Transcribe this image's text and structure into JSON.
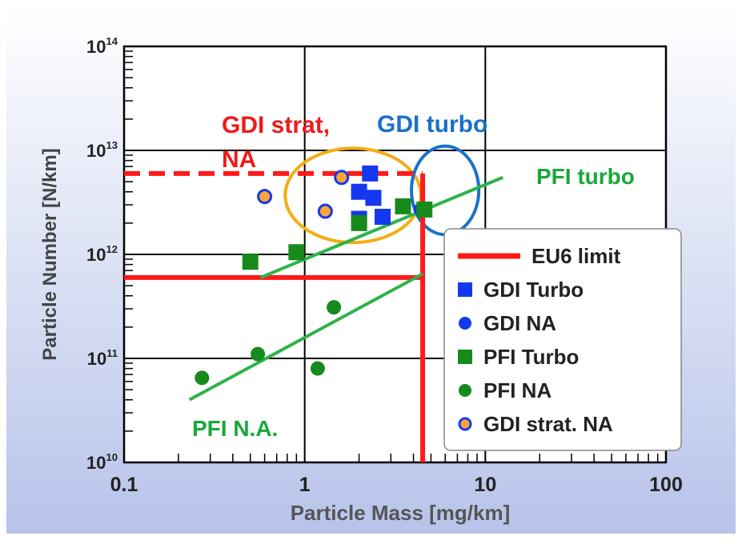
{
  "colors": {
    "background_top": "#ffffff",
    "background_bottom": "#b7c3ea",
    "limit_red": "#ff1a1a",
    "gdi_blue": "#1438f0",
    "pfi_green": "#178a1c",
    "trend_green": "#2fb24a",
    "strat_fill": "#ffa533",
    "gold_ellipse": "#f4ae12",
    "turbo_circle": "#1a72c6",
    "label_red": "#f01a1a",
    "label_blue": "#1a70c8",
    "label_green": "#18a839"
  },
  "chart_data": {
    "type": "scatter",
    "xlabel": "Particle Mass [mg/km]",
    "ylabel": "Particle Number [N/km]",
    "x_scale": "log",
    "y_scale": "log",
    "xlim": [
      0.1,
      100
    ],
    "ylim": [
      10000000000.0,
      100000000000000.0
    ],
    "x_ticks": [
      {
        "value": 0.1,
        "label": "0.1"
      },
      {
        "value": 1,
        "label": "1"
      },
      {
        "value": 10,
        "label": "10"
      },
      {
        "value": 100,
        "label": "100"
      }
    ],
    "y_ticks": [
      {
        "value": 10000000000.0,
        "base": "10",
        "exp": "10"
      },
      {
        "value": 100000000000.0,
        "base": "10",
        "exp": "11"
      },
      {
        "value": 1000000000000.0,
        "base": "10",
        "exp": "12"
      },
      {
        "value": 10000000000000.0,
        "base": "10",
        "exp": "13"
      },
      {
        "value": 100000000000000.0,
        "base": "10",
        "exp": "14"
      }
    ],
    "grid": true,
    "legend_position": "right",
    "legend": [
      {
        "key": "eu6",
        "label": "EU6 limit",
        "marker": "line",
        "color": "#ff1a1a"
      },
      {
        "key": "gdi_turbo",
        "label": "GDI Turbo",
        "marker": "square",
        "color": "#1438f0"
      },
      {
        "key": "gdi_na",
        "label": "GDI NA",
        "marker": "circle",
        "color": "#1438f0"
      },
      {
        "key": "pfi_turbo",
        "label": "PFI Turbo",
        "marker": "square",
        "color": "#178a1c"
      },
      {
        "key": "pfi_na",
        "label": "PFI NA",
        "marker": "circle",
        "color": "#178a1c"
      },
      {
        "key": "gdi_strat_na",
        "label": "GDI strat. NA",
        "marker": "ring",
        "color": "#1438f0",
        "fill": "#ffa533"
      }
    ],
    "series": [
      {
        "key": "gdi_turbo",
        "marker": "square",
        "color": "#1438f0",
        "points": [
          [
            2.3,
            6000000000000.0
          ],
          [
            2.0,
            4000000000000.0
          ],
          [
            2.4,
            3500000000000.0
          ],
          [
            2.0,
            2200000000000.0
          ],
          [
            2.7,
            2300000000000.0
          ]
        ]
      },
      {
        "key": "gdi_na",
        "marker": "circle",
        "color": "#1438f0",
        "points": [
          [
            4.4,
            2700000000000.0
          ]
        ]
      },
      {
        "key": "pfi_turbo",
        "marker": "square",
        "color": "#178a1c",
        "points": [
          [
            0.5,
            850000000000.0
          ],
          [
            0.9,
            1050000000000.0
          ],
          [
            2.0,
            2000000000000.0
          ],
          [
            3.5,
            2900000000000.0
          ],
          [
            4.6,
            2700000000000.0
          ]
        ]
      },
      {
        "key": "pfi_na",
        "marker": "circle",
        "color": "#178a1c",
        "points": [
          [
            0.27,
            65000000000.0
          ],
          [
            0.55,
            110000000000.0
          ],
          [
            1.45,
            310000000000.0
          ],
          [
            1.18,
            80000000000.0
          ]
        ]
      },
      {
        "key": "gdi_strat_na",
        "marker": "ring",
        "color": "#1438f0",
        "fill": "#ffa533",
        "points": [
          [
            0.6,
            3600000000000.0
          ],
          [
            1.6,
            5500000000000.0
          ],
          [
            1.3,
            2600000000000.0
          ]
        ]
      }
    ],
    "limit_lines": [
      {
        "name": "EU6 limit PN (GDI)",
        "style": "dashed",
        "color": "#ff1a1a",
        "x": [
          0.1,
          4.5
        ],
        "y": [
          6000000000000.0,
          6000000000000.0
        ]
      },
      {
        "name": "EU6 limit PN",
        "style": "solid",
        "color": "#ff1a1a",
        "x": [
          0.1,
          4.5
        ],
        "y": [
          600000000000.0,
          600000000000.0
        ]
      },
      {
        "name": "EU6 limit PM",
        "style": "solid",
        "color": "#ff1a1a",
        "x": [
          4.5,
          4.5
        ],
        "y": [
          10000000000.0,
          6000000000000.0
        ]
      }
    ],
    "trend_lines": [
      {
        "name": "PFI turbo",
        "color": "#2fb24a",
        "x": [
          0.57,
          12.5
        ],
        "y": [
          600000000000.0,
          5500000000000.0
        ]
      },
      {
        "name": "PFI N.A.",
        "color": "#2fb24a",
        "x": [
          0.23,
          4.5
        ],
        "y": [
          40000000000.0,
          650000000000.0
        ]
      }
    ],
    "highlight_shapes": [
      {
        "kind": "ellipse",
        "color": "#f4ae12",
        "x_range": [
          0.78,
          4.4
        ],
        "y_range": [
          1300000000000.0,
          10500000000000.0
        ]
      },
      {
        "kind": "circle",
        "color": "#1a72c6",
        "x_range": [
          3.9,
          9.2
        ],
        "y_range": [
          1550000000000.0,
          11000000000000.0
        ]
      }
    ],
    "annotations": {
      "gdi_strat_line1": "GDI strat,",
      "gdi_strat_line2": "NA",
      "gdi_turbo": "GDI turbo",
      "pfi_turbo": "PFI turbo",
      "pfi_na": "PFI N.A."
    }
  }
}
